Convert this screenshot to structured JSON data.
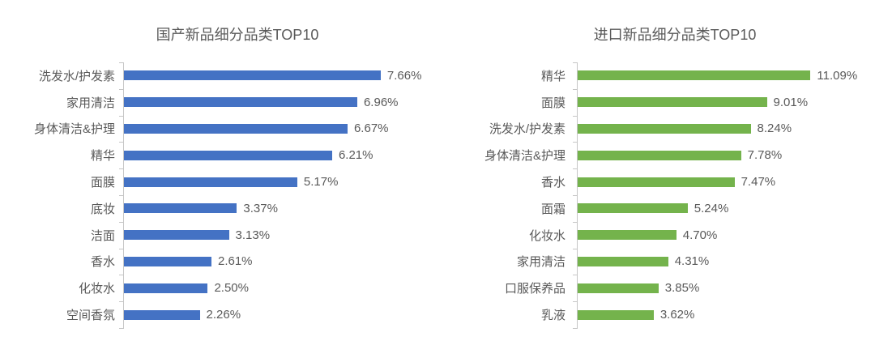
{
  "page": {
    "background": "#ffffff"
  },
  "colors": {
    "domestic_bar": "#4472C4",
    "import_bar": "#74B34C",
    "text": "#595959",
    "axis": "#C6C6C6"
  },
  "chart_data": [
    {
      "type": "bar",
      "orientation": "horizontal",
      "title": "国产新品细分品类TOP10",
      "categories": [
        "洗发水/护发素",
        "家用清洁",
        "身体清洁&护理",
        "精华",
        "面膜",
        "底妆",
        "洁面",
        "香水",
        "化妆水",
        "空间香氛"
      ],
      "values": [
        7.66,
        6.96,
        6.67,
        6.21,
        5.17,
        3.37,
        3.13,
        2.61,
        2.5,
        2.26
      ],
      "value_labels": [
        "7.66%",
        "6.96%",
        "6.67%",
        "6.21%",
        "5.17%",
        "3.37%",
        "3.13%",
        "2.61%",
        "2.50%",
        "2.26%"
      ],
      "xlim": [
        0,
        8
      ],
      "bar_color": "#4472C4",
      "grid": false,
      "legend": false,
      "value_label_position": "outside-end"
    },
    {
      "type": "bar",
      "orientation": "horizontal",
      "title": "进口新品细分品类TOP10",
      "categories": [
        "精华",
        "面膜",
        "洗发水/护发素",
        "身体清洁&护理",
        "香水",
        "面霜",
        "化妆水",
        "家用清洁",
        "口服保养品",
        "乳液"
      ],
      "values": [
        11.09,
        9.01,
        8.24,
        7.78,
        7.47,
        5.24,
        4.7,
        4.31,
        3.85,
        3.62
      ],
      "value_labels": [
        "11.09%",
        "9.01%",
        "8.24%",
        "7.78%",
        "7.47%",
        "5.24%",
        "4.70%",
        "4.31%",
        "3.85%",
        "3.62%"
      ],
      "xlim": [
        0,
        12
      ],
      "bar_color": "#74B34C",
      "grid": false,
      "legend": false,
      "value_label_position": "outside-end"
    }
  ]
}
